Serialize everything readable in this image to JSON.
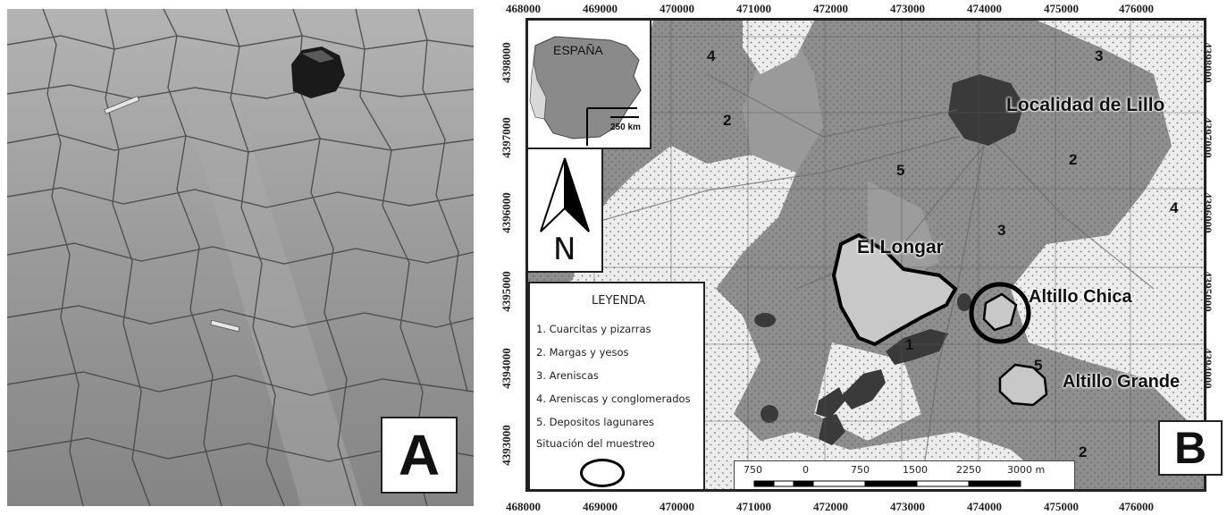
{
  "panels": [
    {
      "letter": "A"
    },
    {
      "letter": "B"
    }
  ],
  "map": {
    "x_ticks": [
      "468000",
      "469000",
      "470000",
      "471000",
      "472000",
      "473000",
      "474000",
      "475000",
      "476000"
    ],
    "y_ticks": [
      "4398000",
      "4397000",
      "4396000",
      "4395000",
      "4394000",
      "4393000"
    ],
    "inset": {
      "title": "ESPAÑA",
      "scale": "250 km"
    },
    "north_label": "N",
    "place_labels": {
      "lillo": "Localidad de Lillo",
      "longar": "El Longar",
      "chica": "Altillo Chica",
      "grande": "Altillo Grande"
    },
    "unit_numbers": [
      "4",
      "2",
      "3",
      "5",
      "2",
      "3",
      "4",
      "1",
      "5",
      "2"
    ],
    "legend": {
      "title": "LEYENDA",
      "items": [
        "1. Cuarcitas y pizarras",
        "2. Margas y yesos",
        "3. Areniscas",
        "4. Areniscas y conglomerados",
        "5. Depositos lagunares"
      ],
      "sampling": "Situación del muestreo"
    },
    "scale_labels": [
      "750",
      "0",
      "750",
      "1500",
      "2250",
      "3000 m"
    ],
    "colors": {
      "unit_dark": "#3a3a3a",
      "unit_grey": "#8e8e8e",
      "unit_light": "#e8e8e8",
      "lake": "#c8c8c8"
    }
  }
}
